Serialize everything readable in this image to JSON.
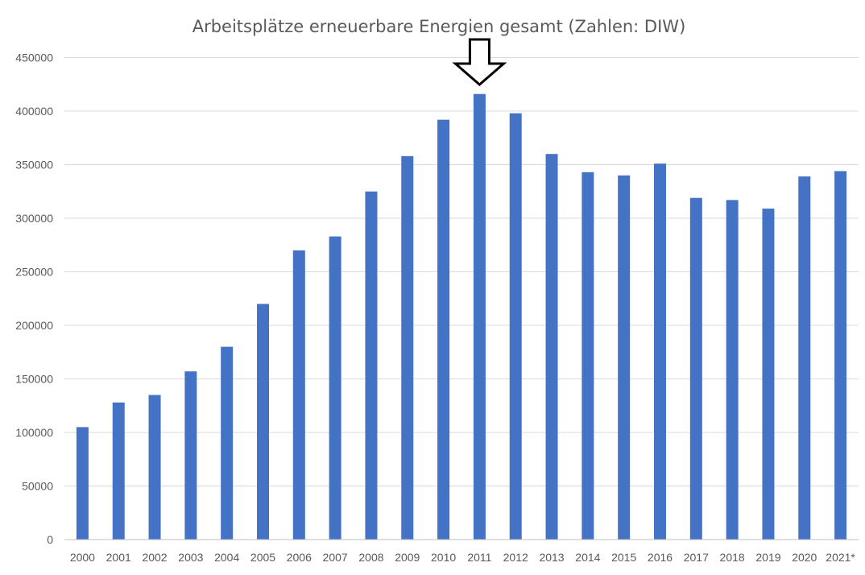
{
  "chart_data": {
    "type": "bar",
    "title": "Arbeitsplätze erneuerbare Energien gesamt (Zahlen: DIW)",
    "xlabel": "",
    "ylabel": "",
    "categories": [
      "2000",
      "2001",
      "2002",
      "2003",
      "2004",
      "2005",
      "2006",
      "2007",
      "2008",
      "2009",
      "2010",
      "2011",
      "2012",
      "2013",
      "2014",
      "2015",
      "2016",
      "2017",
      "2018",
      "2019",
      "2020",
      "2021*"
    ],
    "values": [
      105000,
      128000,
      135000,
      157000,
      180000,
      220000,
      270000,
      283000,
      325000,
      358000,
      392000,
      416000,
      398000,
      360000,
      343000,
      340000,
      351000,
      319000,
      317000,
      309000,
      339000,
      344000
    ],
    "ylim": [
      0,
      450000
    ],
    "yticks": [
      0,
      50000,
      100000,
      150000,
      200000,
      250000,
      300000,
      350000,
      400000,
      450000
    ],
    "ytick_labels": [
      "0",
      "50000",
      "100000",
      "150000",
      "200000",
      "250000",
      "300000",
      "350000",
      "400000",
      "450000"
    ],
    "grid": true,
    "legend": "none",
    "bar_color": "#4472c4",
    "annotation": {
      "type": "down-arrow-icon",
      "points_to_category": "2011"
    }
  }
}
